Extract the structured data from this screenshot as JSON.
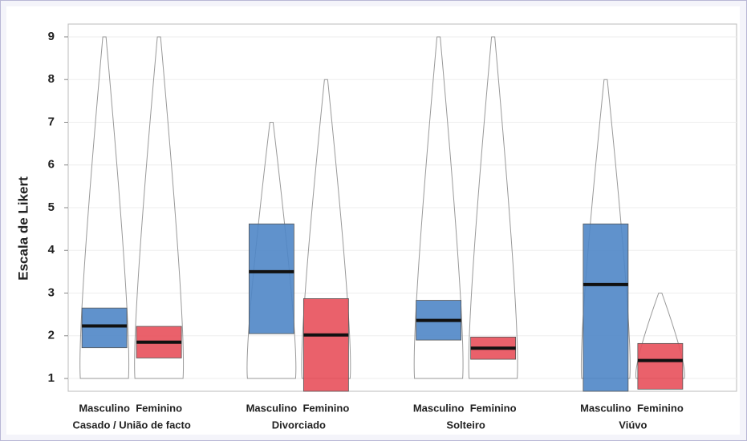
{
  "chart_data": {
    "type": "box",
    "y_label": "Escala de Likert",
    "categories": [
      "Casado / União de facto",
      "Divorciado",
      "Solteiro",
      "Viúvo"
    ],
    "series": [
      {
        "name": "Masculino",
        "color": "#4f86c6",
        "q1": [
          1.72,
          2.05,
          1.9,
          0.7
        ],
        "median": [
          2.23,
          3.5,
          2.36,
          3.2
        ],
        "q3": [
          2.65,
          4.62,
          2.83,
          4.62
        ],
        "min": [
          1,
          1,
          1,
          1
        ],
        "max": [
          9,
          7,
          9,
          8
        ]
      },
      {
        "name": "Feminino",
        "color": "#e8505b",
        "q1": [
          1.48,
          0.7,
          1.45,
          0.75
        ],
        "median": [
          1.85,
          2.02,
          1.71,
          1.42
        ],
        "q3": [
          2.22,
          2.87,
          1.97,
          1.82
        ],
        "min": [
          1,
          1,
          1,
          1
        ],
        "max": [
          9,
          8,
          9,
          3
        ]
      }
    ],
    "ylim": [
      0.7,
      9.3
    ],
    "yticks": [
      1,
      2,
      3,
      4,
      5,
      6,
      7,
      8,
      9
    ],
    "grid": true
  }
}
